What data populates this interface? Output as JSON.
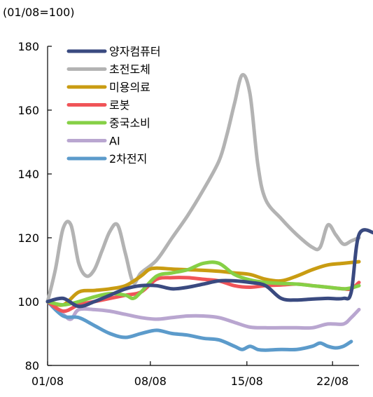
{
  "chart_data": {
    "type": "line",
    "title": "",
    "unit_label": "(01/08=100)",
    "xlabel": "",
    "ylabel": "",
    "ylim": [
      80,
      180
    ],
    "yticks": [
      80,
      100,
      120,
      140,
      160,
      180
    ],
    "xlim": [
      0,
      20
    ],
    "xtick_labels": [
      {
        "x": 0,
        "label": "01/08"
      },
      {
        "x": 6.6,
        "label": "08/08"
      },
      {
        "x": 12.8,
        "label": "15/08"
      },
      {
        "x": 18.3,
        "label": "22/08"
      }
    ],
    "grid": false,
    "legend_position": "top-left",
    "series": [
      {
        "name": "양자컴퓨터",
        "color": "#3a4a80",
        "points": [
          [
            0,
            100
          ],
          [
            1,
            101
          ],
          [
            2,
            98.5
          ],
          [
            3,
            100
          ],
          [
            4,
            102
          ],
          [
            5,
            104
          ],
          [
            6,
            105
          ],
          [
            7,
            105
          ],
          [
            8,
            104
          ],
          [
            9,
            104.5
          ],
          [
            10,
            105.5
          ],
          [
            11,
            106.5
          ],
          [
            12,
            106.5
          ],
          [
            13,
            106
          ],
          [
            14,
            105
          ],
          [
            15,
            101
          ],
          [
            16,
            100.5
          ],
          [
            17,
            100.8
          ],
          [
            18,
            101
          ],
          [
            19,
            101
          ],
          [
            19.5,
            103
          ],
          [
            20,
            121
          ],
          [
            21,
            121.5
          ]
        ]
      },
      {
        "name": "초전도체",
        "color": "#b3b3b3",
        "points": [
          [
            0,
            100
          ],
          [
            0.5,
            110
          ],
          [
            1,
            123
          ],
          [
            1.5,
            124
          ],
          [
            2,
            112
          ],
          [
            2.5,
            108
          ],
          [
            3,
            110
          ],
          [
            3.5,
            116
          ],
          [
            4,
            122
          ],
          [
            4.5,
            124
          ],
          [
            5,
            115
          ],
          [
            5.5,
            106
          ],
          [
            6,
            109
          ],
          [
            7,
            113
          ],
          [
            8,
            120
          ],
          [
            9,
            127
          ],
          [
            10,
            135
          ],
          [
            11,
            144
          ],
          [
            11.5,
            152
          ],
          [
            12,
            162
          ],
          [
            12.5,
            171
          ],
          [
            13,
            165
          ],
          [
            13.5,
            143
          ],
          [
            14,
            132
          ],
          [
            15,
            126
          ],
          [
            16,
            121
          ],
          [
            17,
            117
          ],
          [
            17.5,
            117
          ],
          [
            18,
            124
          ],
          [
            18.5,
            121
          ],
          [
            19,
            118
          ],
          [
            19.5,
            119
          ],
          [
            20,
            120
          ]
        ]
      },
      {
        "name": "미용의료",
        "color": "#c99c12",
        "points": [
          [
            0,
            100
          ],
          [
            1,
            99
          ],
          [
            2,
            103
          ],
          [
            3,
            103.5
          ],
          [
            4,
            104
          ],
          [
            5,
            105
          ],
          [
            6,
            108
          ],
          [
            6.5,
            110
          ],
          [
            7,
            110.5
          ],
          [
            8,
            110.2
          ],
          [
            9,
            110
          ],
          [
            10,
            109.8
          ],
          [
            11,
            109.5
          ],
          [
            12,
            109
          ],
          [
            13,
            108.5
          ],
          [
            14,
            107
          ],
          [
            15,
            106.5
          ],
          [
            16,
            108
          ],
          [
            17,
            110
          ],
          [
            18,
            111.5
          ],
          [
            19,
            112
          ],
          [
            20,
            112.5
          ]
        ]
      },
      {
        "name": "로봇",
        "color": "#f05458",
        "points": [
          [
            0,
            100
          ],
          [
            1,
            97
          ],
          [
            2,
            99
          ],
          [
            3,
            100
          ],
          [
            4,
            101
          ],
          [
            5,
            102
          ],
          [
            6,
            103
          ],
          [
            7,
            107
          ],
          [
            8,
            107.5
          ],
          [
            9,
            107.5
          ],
          [
            10,
            107
          ],
          [
            11,
            106.5
          ],
          [
            12,
            105
          ],
          [
            13,
            104.5
          ],
          [
            14,
            105
          ],
          [
            15,
            105.2
          ],
          [
            16,
            105.5
          ],
          [
            17,
            105
          ],
          [
            18,
            104.5
          ],
          [
            19,
            104
          ],
          [
            19.5,
            104
          ],
          [
            20,
            106
          ]
        ]
      },
      {
        "name": "중국소비",
        "color": "#86d046",
        "points": [
          [
            0,
            100
          ],
          [
            1,
            99
          ],
          [
            2,
            100
          ],
          [
            3,
            101.5
          ],
          [
            4,
            102.5
          ],
          [
            5,
            102
          ],
          [
            5.5,
            101
          ],
          [
            6,
            103
          ],
          [
            7,
            108
          ],
          [
            8,
            109
          ],
          [
            9,
            110
          ],
          [
            10,
            112
          ],
          [
            11,
            112
          ],
          [
            12,
            108.5
          ],
          [
            13,
            106.8
          ],
          [
            14,
            106
          ],
          [
            15,
            105.7
          ],
          [
            16,
            105.5
          ],
          [
            17,
            105
          ],
          [
            18,
            104.5
          ],
          [
            19,
            104
          ],
          [
            19.5,
            104.3
          ],
          [
            20,
            105
          ]
        ]
      },
      {
        "name": "AI",
        "color": "#b9a6d0",
        "points": [
          [
            0,
            100
          ],
          [
            1,
            96
          ],
          [
            1.5,
            94.5
          ],
          [
            2,
            97.5
          ],
          [
            3,
            97.5
          ],
          [
            4,
            97
          ],
          [
            5,
            96
          ],
          [
            6,
            95
          ],
          [
            7,
            94.5
          ],
          [
            8,
            95
          ],
          [
            9,
            95.5
          ],
          [
            10,
            95.5
          ],
          [
            11,
            95
          ],
          [
            12,
            93.5
          ],
          [
            13,
            92
          ],
          [
            14,
            91.8
          ],
          [
            15,
            91.8
          ],
          [
            16,
            91.8
          ],
          [
            17,
            91.8
          ],
          [
            18,
            93
          ],
          [
            19,
            93
          ],
          [
            19.5,
            95
          ],
          [
            20,
            97.5
          ]
        ]
      },
      {
        "name": "2차전지",
        "color": "#5c9bcb",
        "points": [
          [
            0,
            100
          ],
          [
            1,
            95.5
          ],
          [
            2,
            95
          ],
          [
            3,
            92.5
          ],
          [
            4,
            90
          ],
          [
            5,
            88.8
          ],
          [
            6,
            90
          ],
          [
            7,
            91
          ],
          [
            8,
            90
          ],
          [
            9,
            89.5
          ],
          [
            10,
            88.5
          ],
          [
            11,
            88
          ],
          [
            12,
            86
          ],
          [
            12.5,
            85
          ],
          [
            13,
            86
          ],
          [
            13.5,
            85
          ],
          [
            14,
            84.8
          ],
          [
            15,
            85
          ],
          [
            16,
            85
          ],
          [
            17,
            86
          ],
          [
            17.5,
            87
          ],
          [
            18,
            86
          ],
          [
            18.5,
            85.5
          ],
          [
            19,
            86
          ],
          [
            19.5,
            87.5
          ]
        ]
      }
    ]
  }
}
